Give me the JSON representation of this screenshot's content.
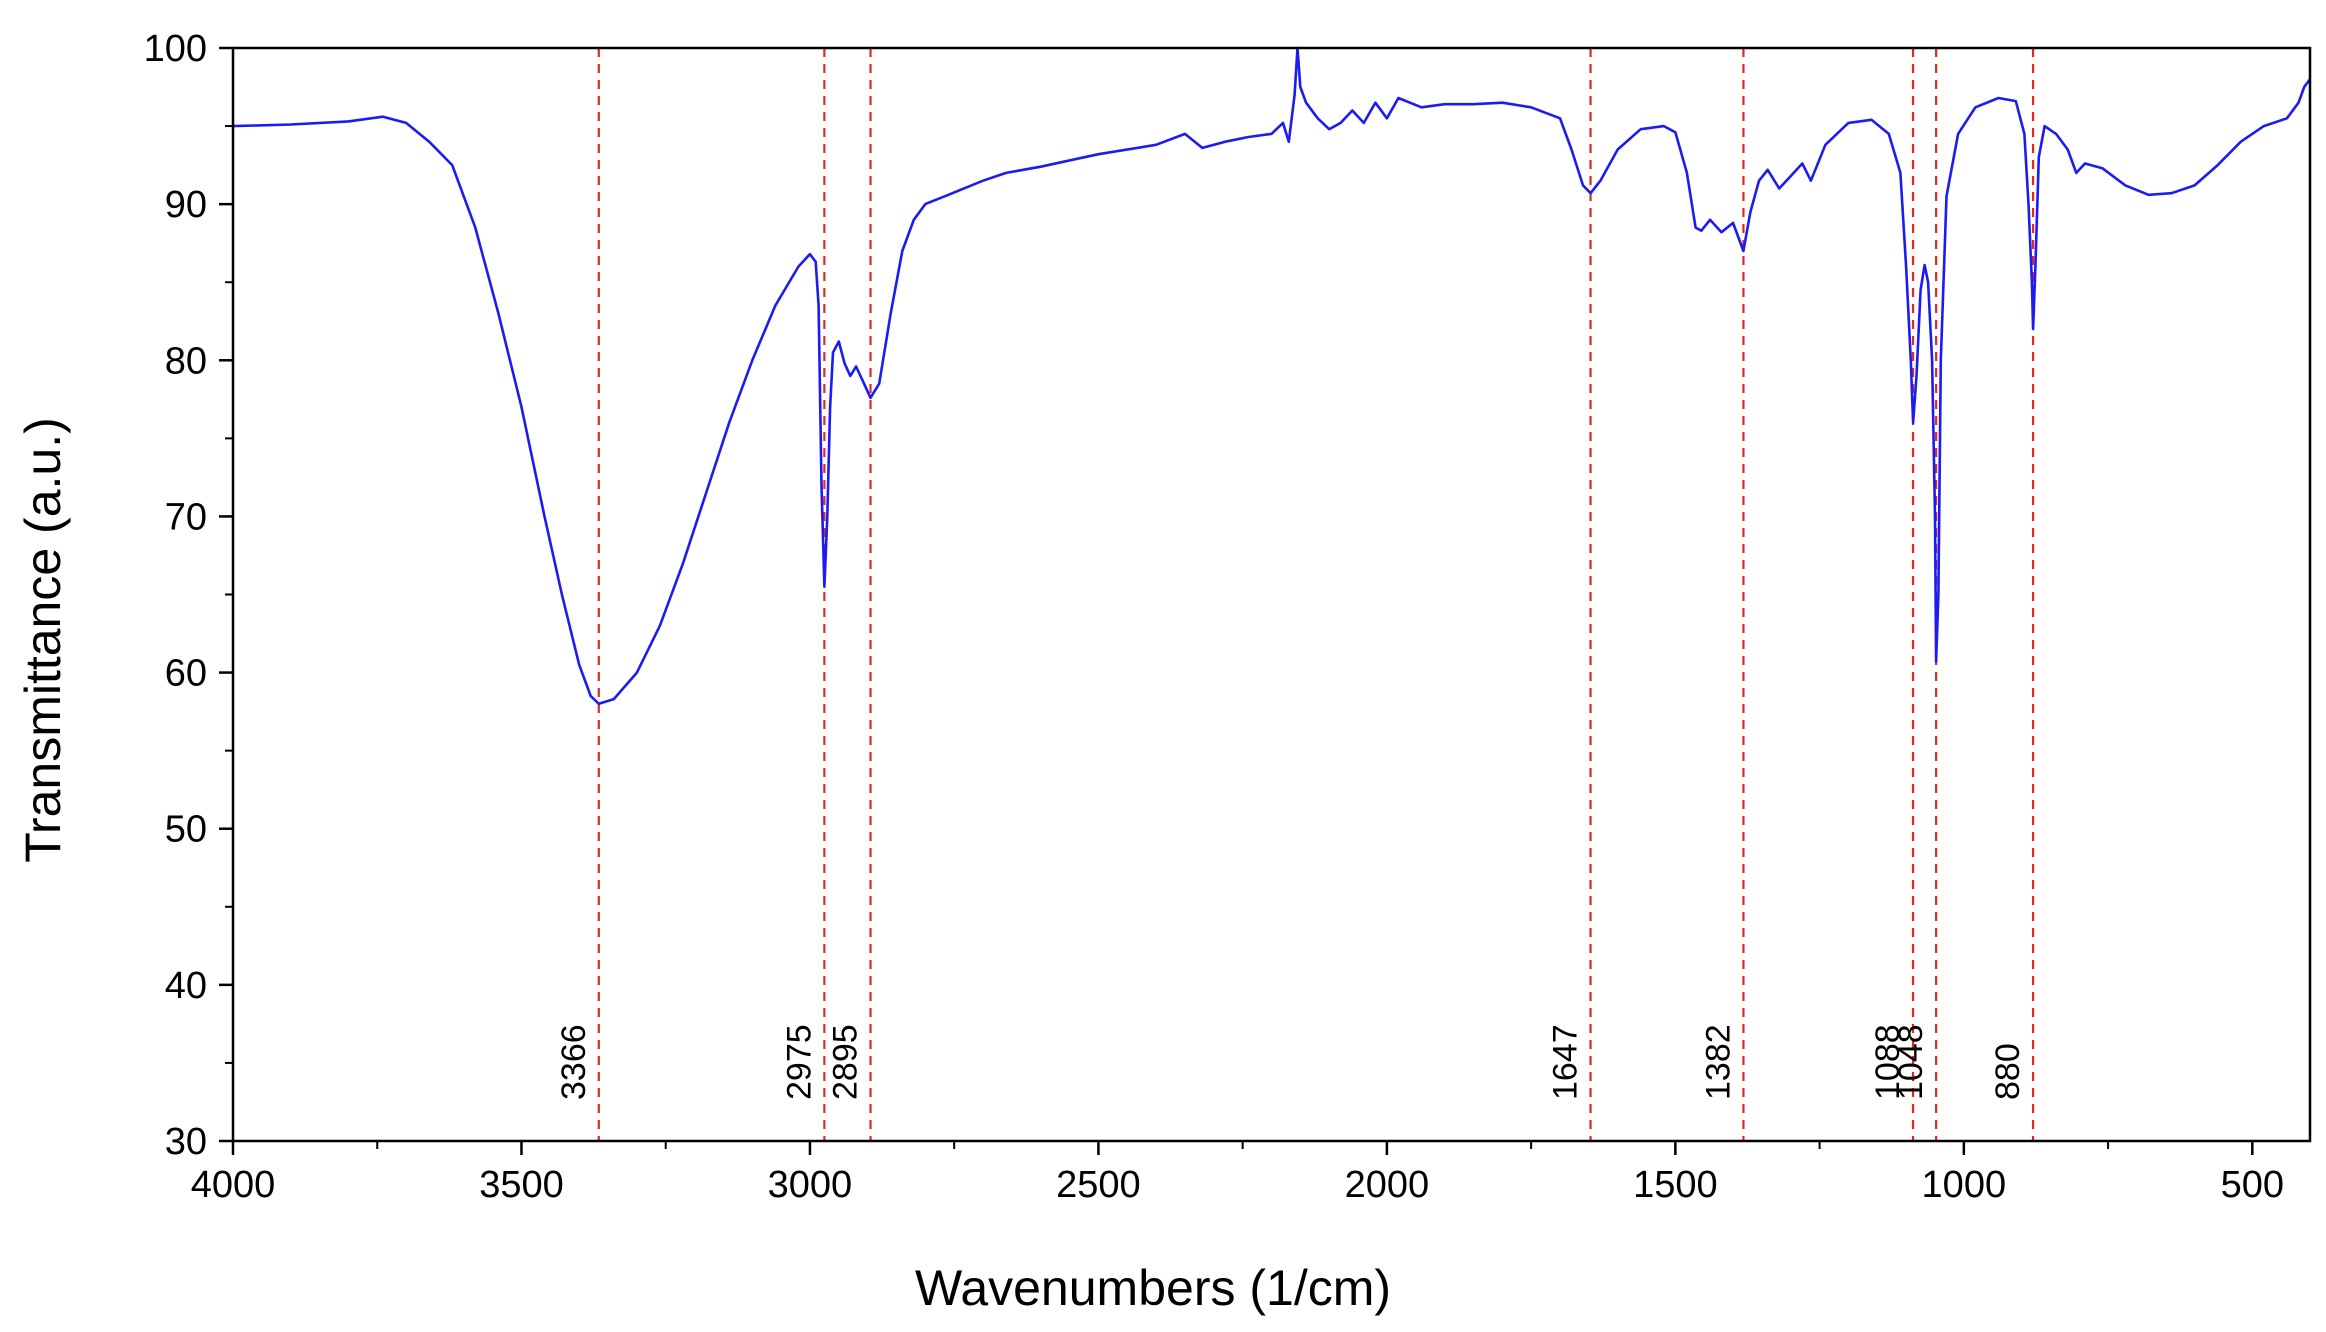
{
  "chart_data": {
    "type": "line",
    "title": "",
    "xlabel": "Wavenumbers (1/cm)",
    "ylabel": "Transmittance (a.u.)",
    "xlim": [
      4000,
      400
    ],
    "ylim": [
      30,
      100
    ],
    "x_reversed": true,
    "x_ticks": [
      4000,
      3500,
      3000,
      2500,
      2000,
      1500,
      1000,
      500
    ],
    "y_ticks": [
      30,
      40,
      50,
      60,
      70,
      80,
      90,
      100
    ],
    "grid": false,
    "legend": "none",
    "series": [
      {
        "color": "#1c1cf0",
        "points": [
          [
            4000,
            95.0
          ],
          [
            3900,
            95.1
          ],
          [
            3800,
            95.3
          ],
          [
            3740,
            95.6
          ],
          [
            3700,
            95.2
          ],
          [
            3660,
            94.0
          ],
          [
            3620,
            92.5
          ],
          [
            3580,
            88.5
          ],
          [
            3540,
            83.0
          ],
          [
            3500,
            77.0
          ],
          [
            3460,
            70.0
          ],
          [
            3430,
            65.0
          ],
          [
            3400,
            60.5
          ],
          [
            3380,
            58.5
          ],
          [
            3366,
            58.0
          ],
          [
            3340,
            58.3
          ],
          [
            3300,
            60.0
          ],
          [
            3260,
            63.0
          ],
          [
            3220,
            67.0
          ],
          [
            3180,
            71.5
          ],
          [
            3140,
            76.0
          ],
          [
            3100,
            80.0
          ],
          [
            3060,
            83.5
          ],
          [
            3020,
            86.0
          ],
          [
            3000,
            86.8
          ],
          [
            2990,
            86.3
          ],
          [
            2985,
            83.5
          ],
          [
            2980,
            72.0
          ],
          [
            2975,
            65.5
          ],
          [
            2970,
            70.0
          ],
          [
            2965,
            77.0
          ],
          [
            2960,
            80.5
          ],
          [
            2950,
            81.2
          ],
          [
            2940,
            79.8
          ],
          [
            2930,
            79.0
          ],
          [
            2920,
            79.6
          ],
          [
            2910,
            78.8
          ],
          [
            2895,
            77.6
          ],
          [
            2880,
            78.5
          ],
          [
            2860,
            83.0
          ],
          [
            2840,
            87.0
          ],
          [
            2820,
            89.0
          ],
          [
            2800,
            90.0
          ],
          [
            2760,
            90.6
          ],
          [
            2700,
            91.5
          ],
          [
            2660,
            92.0
          ],
          [
            2600,
            92.4
          ],
          [
            2500,
            93.2
          ],
          [
            2400,
            93.8
          ],
          [
            2350,
            94.5
          ],
          [
            2320,
            93.6
          ],
          [
            2280,
            94.0
          ],
          [
            2240,
            94.3
          ],
          [
            2200,
            94.5
          ],
          [
            2180,
            95.2
          ],
          [
            2170,
            94.0
          ],
          [
            2160,
            97.0
          ],
          [
            2155,
            100.0
          ],
          [
            2150,
            97.5
          ],
          [
            2140,
            96.5
          ],
          [
            2120,
            95.5
          ],
          [
            2100,
            94.8
          ],
          [
            2080,
            95.2
          ],
          [
            2060,
            96.0
          ],
          [
            2040,
            95.2
          ],
          [
            2020,
            96.5
          ],
          [
            2000,
            95.5
          ],
          [
            1980,
            96.8
          ],
          [
            1960,
            96.5
          ],
          [
            1940,
            96.2
          ],
          [
            1900,
            96.4
          ],
          [
            1850,
            96.4
          ],
          [
            1800,
            96.5
          ],
          [
            1750,
            96.2
          ],
          [
            1700,
            95.5
          ],
          [
            1680,
            93.5
          ],
          [
            1660,
            91.2
          ],
          [
            1647,
            90.7
          ],
          [
            1630,
            91.5
          ],
          [
            1600,
            93.5
          ],
          [
            1560,
            94.8
          ],
          [
            1520,
            95.0
          ],
          [
            1500,
            94.6
          ],
          [
            1480,
            92.0
          ],
          [
            1465,
            88.5
          ],
          [
            1455,
            88.3
          ],
          [
            1440,
            89.0
          ],
          [
            1420,
            88.2
          ],
          [
            1400,
            88.8
          ],
          [
            1382,
            87.0
          ],
          [
            1370,
            89.5
          ],
          [
            1355,
            91.5
          ],
          [
            1340,
            92.2
          ],
          [
            1320,
            91.0
          ],
          [
            1300,
            91.8
          ],
          [
            1280,
            92.6
          ],
          [
            1265,
            91.5
          ],
          [
            1240,
            93.8
          ],
          [
            1200,
            95.2
          ],
          [
            1160,
            95.4
          ],
          [
            1130,
            94.5
          ],
          [
            1110,
            92.0
          ],
          [
            1100,
            86.0
          ],
          [
            1092,
            80.0
          ],
          [
            1088,
            76.0
          ],
          [
            1082,
            79.0
          ],
          [
            1075,
            84.5
          ],
          [
            1068,
            86.1
          ],
          [
            1062,
            85.0
          ],
          [
            1055,
            80.0
          ],
          [
            1050,
            70.0
          ],
          [
            1048,
            60.7
          ],
          [
            1044,
            65.0
          ],
          [
            1040,
            80.0
          ],
          [
            1030,
            90.5
          ],
          [
            1010,
            94.5
          ],
          [
            980,
            96.2
          ],
          [
            940,
            96.8
          ],
          [
            910,
            96.6
          ],
          [
            895,
            94.5
          ],
          [
            888,
            90.0
          ],
          [
            882,
            85.0
          ],
          [
            880,
            82.0
          ],
          [
            876,
            86.0
          ],
          [
            870,
            93.0
          ],
          [
            860,
            95.0
          ],
          [
            840,
            94.5
          ],
          [
            820,
            93.5
          ],
          [
            805,
            92.0
          ],
          [
            790,
            92.6
          ],
          [
            760,
            92.3
          ],
          [
            720,
            91.2
          ],
          [
            680,
            90.6
          ],
          [
            640,
            90.7
          ],
          [
            600,
            91.2
          ],
          [
            560,
            92.5
          ],
          [
            520,
            94.0
          ],
          [
            480,
            95.0
          ],
          [
            440,
            95.5
          ],
          [
            420,
            96.5
          ],
          [
            410,
            97.5
          ],
          [
            400,
            98.0
          ]
        ]
      }
    ],
    "reference_lines": {
      "color": "#e8261f",
      "style": "dashed",
      "x": [
        3366,
        2975,
        2895,
        1647,
        1382,
        1088,
        1048,
        880
      ],
      "labels": [
        "3366",
        "2975",
        "2895",
        "1647",
        "1382",
        "1088",
        "1048",
        "880"
      ]
    }
  }
}
